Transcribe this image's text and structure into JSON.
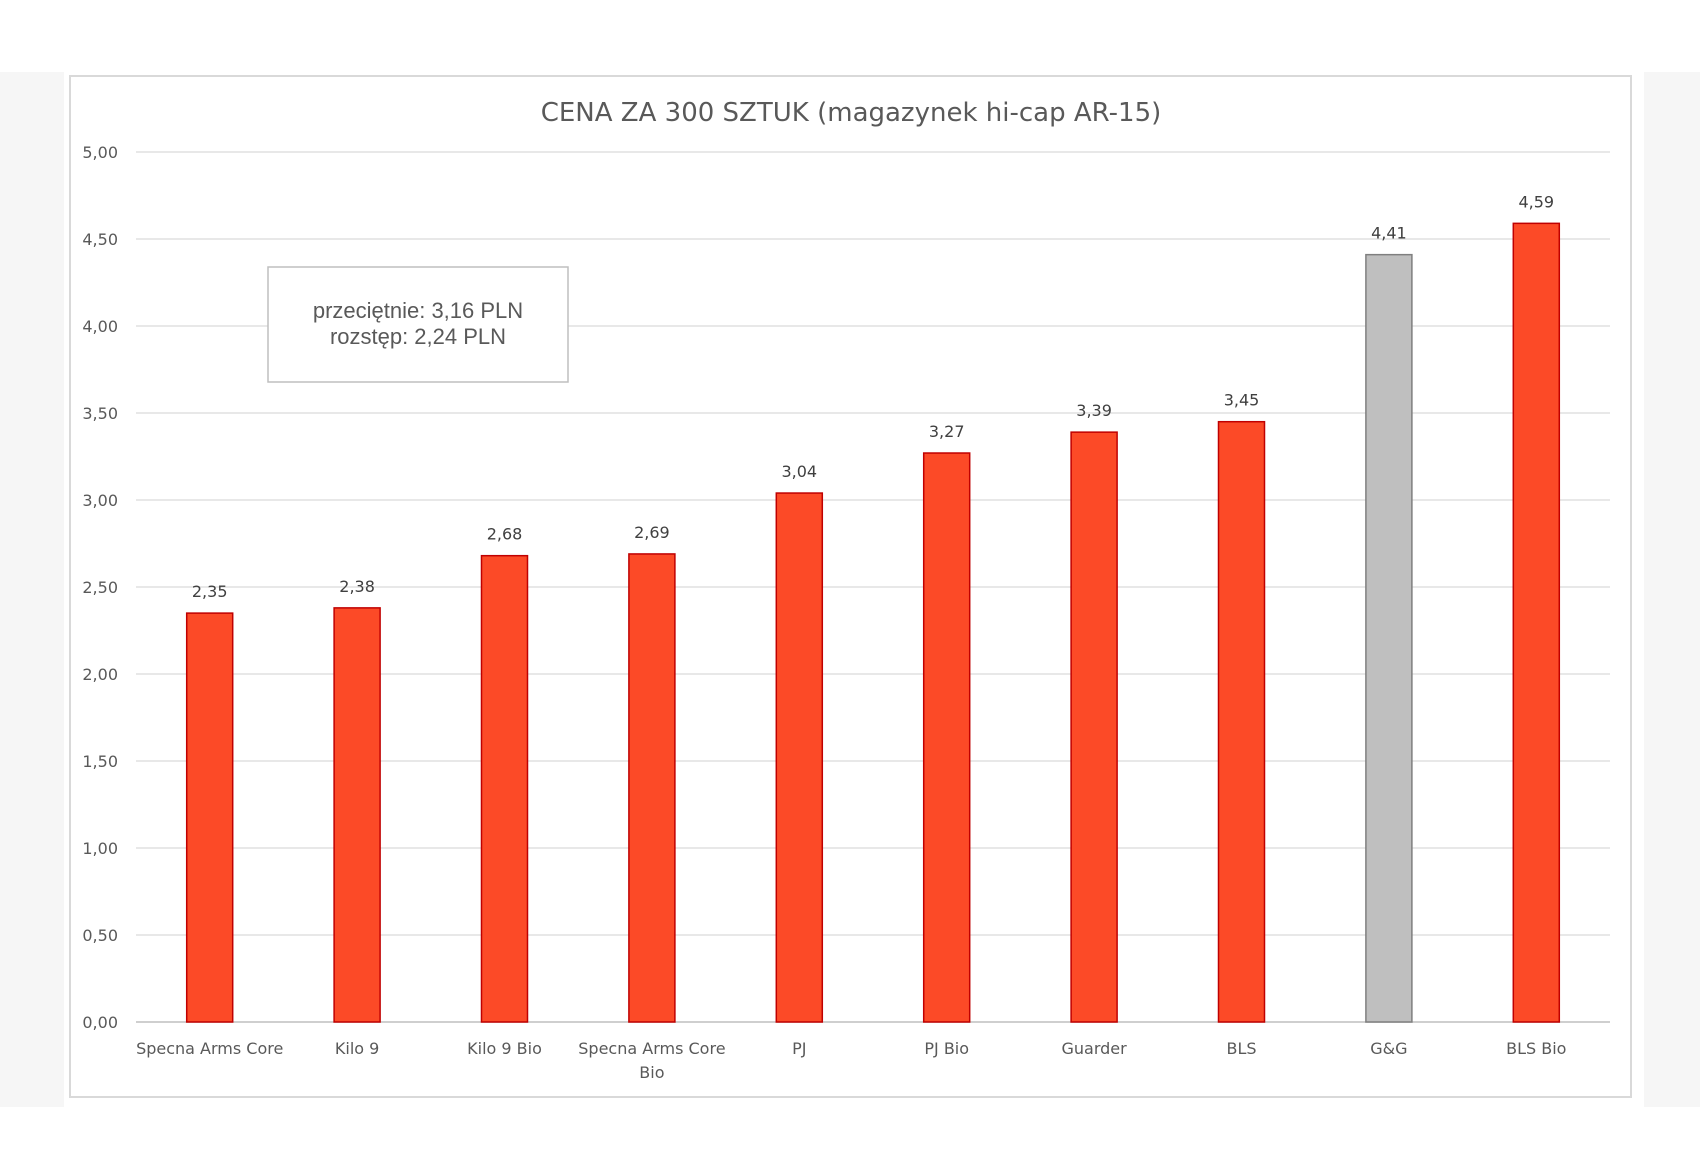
{
  "chart_data": {
    "type": "bar",
    "title": "CENA ZA 300 SZTUK (magazynek hi-cap AR-15)",
    "xlabel": "",
    "ylabel": "",
    "ylim": [
      0,
      5
    ],
    "yticks": [
      "0,00",
      "0,50",
      "1,00",
      "1,50",
      "2,00",
      "2,50",
      "3,00",
      "3,50",
      "4,00",
      "4,50",
      "5,00"
    ],
    "categories": [
      [
        "Specna Arms Core"
      ],
      [
        "Kilo 9"
      ],
      [
        "Kilo 9 Bio"
      ],
      [
        "Specna Arms Core",
        "Bio"
      ],
      [
        "PJ"
      ],
      [
        "PJ Bio"
      ],
      [
        "Guarder"
      ],
      [
        "BLS"
      ],
      [
        "G&G"
      ],
      [
        "BLS Bio"
      ]
    ],
    "values": [
      2.35,
      2.38,
      2.68,
      2.69,
      3.04,
      3.27,
      3.39,
      3.45,
      4.41,
      4.59
    ],
    "value_labels": [
      "2,35",
      "2,38",
      "2,68",
      "2,69",
      "3,04",
      "3,27",
      "3,39",
      "3,45",
      "4,41",
      "4,59"
    ],
    "bar_colors": [
      "#fc4a27",
      "#fc4a27",
      "#fc4a27",
      "#fc4a27",
      "#fc4a27",
      "#fc4a27",
      "#fc4a27",
      "#fc4a27",
      "#bfbfbf",
      "#fc4a27"
    ],
    "bar_edge_colors": [
      "#c00000",
      "#c00000",
      "#c00000",
      "#c00000",
      "#c00000",
      "#c00000",
      "#c00000",
      "#c00000",
      "#7f7f7f",
      "#c00000"
    ],
    "grid": true,
    "legend": "none",
    "annotation": {
      "lines": [
        "przeciętnie: 3,16 PLN",
        "rozstęp: 2,24 PLN"
      ]
    }
  }
}
